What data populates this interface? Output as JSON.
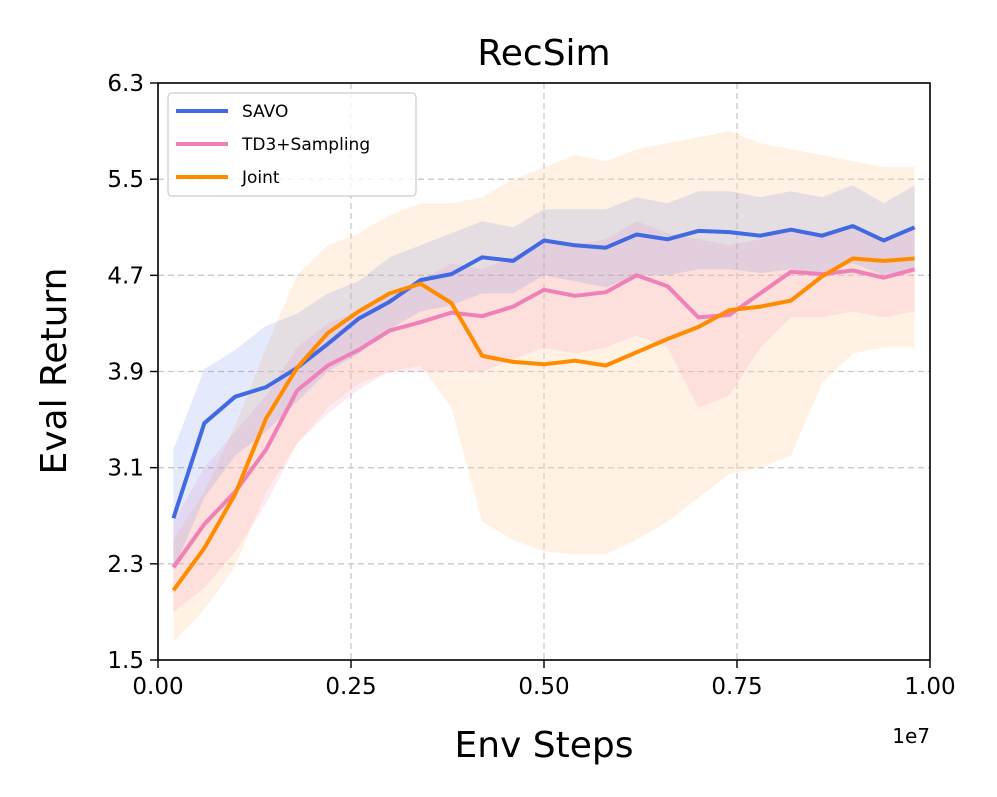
{
  "chart_data": {
    "type": "line",
    "title": "RecSim",
    "xlabel": "Env Steps",
    "ylabel": "Eval Return",
    "x_multiplier_label": "1e7",
    "xlim": [
      0.0,
      1.0
    ],
    "ylim": [
      1.5,
      6.3
    ],
    "xticks": [
      0.0,
      0.25,
      0.5,
      0.75,
      1.0
    ],
    "xtick_labels": [
      "0.00",
      "0.25",
      "0.50",
      "0.75",
      "1.00"
    ],
    "yticks": [
      1.5,
      2.3,
      3.1,
      3.9,
      4.7,
      5.5,
      6.3
    ],
    "ytick_labels": [
      "1.5",
      "2.3",
      "3.1",
      "3.9",
      "4.7",
      "5.5",
      "6.3"
    ],
    "grid": true,
    "legend_position": "top-left",
    "x": [
      0.02,
      0.06,
      0.1,
      0.14,
      0.18,
      0.22,
      0.26,
      0.3,
      0.34,
      0.38,
      0.42,
      0.46,
      0.5,
      0.54,
      0.58,
      0.62,
      0.66,
      0.7,
      0.74,
      0.78,
      0.82,
      0.86,
      0.9,
      0.94,
      0.98
    ],
    "series": [
      {
        "name": "SAVO",
        "color": "#4169e1",
        "band_color": "#4169e1",
        "values": [
          2.68,
          3.47,
          3.69,
          3.77,
          3.93,
          4.13,
          4.34,
          4.48,
          4.66,
          4.71,
          4.85,
          4.82,
          4.99,
          4.95,
          4.93,
          5.04,
          5.0,
          5.07,
          5.06,
          5.03,
          5.08,
          5.03,
          5.11,
          4.99,
          5.1
        ],
        "lower": [
          2.25,
          2.85,
          3.2,
          3.4,
          3.65,
          3.9,
          4.05,
          4.25,
          4.4,
          4.45,
          4.55,
          4.55,
          4.7,
          4.65,
          4.6,
          4.7,
          4.7,
          4.75,
          4.75,
          4.72,
          4.75,
          4.72,
          4.8,
          4.7,
          4.75
        ],
        "upper": [
          3.25,
          3.92,
          4.08,
          4.28,
          4.38,
          4.55,
          4.65,
          4.85,
          4.95,
          5.05,
          5.15,
          5.1,
          5.25,
          5.25,
          5.25,
          5.35,
          5.3,
          5.4,
          5.4,
          5.35,
          5.4,
          5.35,
          5.45,
          5.3,
          5.45
        ]
      },
      {
        "name": "TD3+Sampling",
        "color": "#f080b8",
        "band_color": "#f080b8",
        "values": [
          2.27,
          2.63,
          2.9,
          3.25,
          3.74,
          3.95,
          4.08,
          4.24,
          4.31,
          4.39,
          4.36,
          4.44,
          4.58,
          4.53,
          4.56,
          4.7,
          4.61,
          4.35,
          4.37,
          4.55,
          4.73,
          4.71,
          4.74,
          4.68,
          4.75
        ],
        "lower": [
          1.9,
          2.1,
          2.4,
          2.8,
          3.3,
          3.55,
          3.75,
          3.9,
          3.9,
          3.9,
          3.9,
          4.0,
          4.1,
          4.05,
          4.1,
          4.2,
          4.1,
          3.6,
          3.7,
          4.1,
          4.35,
          4.35,
          4.4,
          4.35,
          4.4
        ],
        "upper": [
          2.65,
          3.1,
          3.4,
          3.7,
          4.1,
          4.3,
          4.4,
          4.55,
          4.65,
          4.8,
          4.75,
          4.85,
          5.0,
          4.95,
          5.0,
          5.15,
          5.05,
          5.0,
          4.95,
          5.0,
          5.1,
          5.05,
          5.1,
          5.0,
          5.1
        ]
      },
      {
        "name": "Joint",
        "color": "#ff8c00",
        "band_color": "#ffd8b0",
        "values": [
          2.08,
          2.43,
          2.88,
          3.51,
          3.93,
          4.22,
          4.4,
          4.55,
          4.63,
          4.47,
          4.03,
          3.98,
          3.96,
          3.99,
          3.95,
          4.06,
          4.17,
          4.27,
          4.41,
          4.44,
          4.49,
          4.69,
          4.84,
          4.82,
          4.84
        ],
        "lower": [
          1.65,
          1.92,
          2.28,
          2.9,
          3.3,
          3.6,
          3.8,
          3.9,
          3.95,
          3.6,
          2.65,
          2.5,
          2.4,
          2.38,
          2.38,
          2.5,
          2.65,
          2.85,
          3.05,
          3.1,
          3.2,
          3.8,
          4.05,
          4.1,
          4.1
        ],
        "upper": [
          2.5,
          2.9,
          3.45,
          4.1,
          4.7,
          4.95,
          5.05,
          5.2,
          5.3,
          5.3,
          5.35,
          5.5,
          5.6,
          5.7,
          5.65,
          5.75,
          5.8,
          5.85,
          5.9,
          5.8,
          5.75,
          5.7,
          5.65,
          5.6,
          5.6
        ]
      }
    ]
  }
}
